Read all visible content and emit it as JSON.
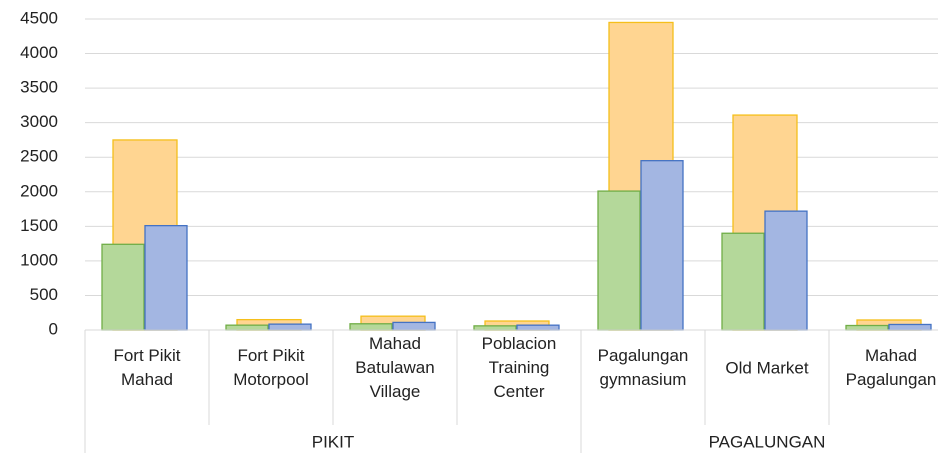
{
  "chart_data": {
    "type": "bar",
    "categories": [
      "Fort Pikit\nMahad",
      "Fort Pikit\nMotorpool",
      "Mahad\nBatulawan\nVillage",
      "Poblacion\nTraining\nCenter",
      "Pagalungan\ngymnasium",
      "Old Market",
      "Mahad\nPagalungan"
    ],
    "groups": [
      {
        "label": "PIKIT",
        "count": 4
      },
      {
        "label": "PAGALUNGAN",
        "count": 3
      }
    ],
    "series": [
      {
        "color": "#ffd591",
        "edge": "#f5bf1b",
        "values": [
          2750,
          150,
          200,
          130,
          4450,
          3110,
          145
        ]
      },
      {
        "color": "#b4d89a",
        "edge": "#70ad47",
        "values": [
          1240,
          70,
          90,
          60,
          2010,
          1400,
          65
        ]
      },
      {
        "color": "#a3b6e2",
        "edge": "#4472c4",
        "values": [
          1510,
          85,
          110,
          70,
          2450,
          1720,
          80
        ]
      }
    ],
    "ylim": [
      0,
      4500
    ],
    "yticks": [
      0,
      500,
      1000,
      1500,
      2000,
      2500,
      3000,
      3500,
      4000,
      4500
    ],
    "grid": true
  }
}
